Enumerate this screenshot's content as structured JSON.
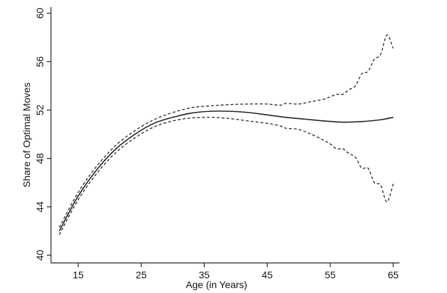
{
  "chart_data": {
    "type": "line",
    "title": "",
    "xlabel": "Age (in Years)",
    "ylabel": "Share of Optimal Moves",
    "xlim": [
      12,
      65
    ],
    "ylim": [
      40,
      60
    ],
    "xticks": [
      15,
      25,
      35,
      45,
      55,
      65
    ],
    "yticks": [
      40,
      44,
      48,
      52,
      56,
      60
    ],
    "grid": false,
    "legend": "none",
    "series": [
      {
        "style": "solid",
        "color": "#222222",
        "x": [
          12,
          15,
          18,
          21,
          24,
          27,
          30,
          33,
          36,
          39,
          42,
          45,
          48,
          51,
          54,
          57,
          60,
          63,
          65
        ],
        "y": [
          42.0,
          44.9,
          47.1,
          48.8,
          50.0,
          50.9,
          51.4,
          51.75,
          51.9,
          51.9,
          51.8,
          51.6,
          51.4,
          51.25,
          51.1,
          51.0,
          51.05,
          51.2,
          51.4
        ]
      },
      {
        "style": "dashed",
        "color": "#222222",
        "x": [
          12,
          15,
          18,
          21,
          24,
          27,
          30,
          33,
          36,
          39,
          42,
          45,
          47,
          48,
          50,
          52,
          54,
          55,
          56,
          57,
          58,
          59,
          60,
          61,
          62,
          63,
          64,
          65
        ],
        "y": [
          42.3,
          45.2,
          47.4,
          49.1,
          50.3,
          51.2,
          51.8,
          52.2,
          52.35,
          52.45,
          52.5,
          52.5,
          52.4,
          52.55,
          52.5,
          52.7,
          52.9,
          53.1,
          53.3,
          53.3,
          53.7,
          54.0,
          55.0,
          55.2,
          56.2,
          56.6,
          58.2,
          57.1
        ]
      },
      {
        "style": "dashed",
        "color": "#222222",
        "x": [
          12,
          15,
          18,
          21,
          24,
          27,
          30,
          33,
          36,
          39,
          42,
          45,
          47,
          48,
          50,
          52,
          54,
          55,
          56,
          57,
          58,
          59,
          60,
          61,
          62,
          63,
          64,
          65
        ],
        "y": [
          41.7,
          44.6,
          46.8,
          48.5,
          49.7,
          50.6,
          51.1,
          51.35,
          51.4,
          51.3,
          51.1,
          50.9,
          50.7,
          50.5,
          50.4,
          50.0,
          49.5,
          49.2,
          48.8,
          48.8,
          48.4,
          48.1,
          47.2,
          47.2,
          46.0,
          45.8,
          44.4,
          45.9
        ]
      }
    ]
  }
}
